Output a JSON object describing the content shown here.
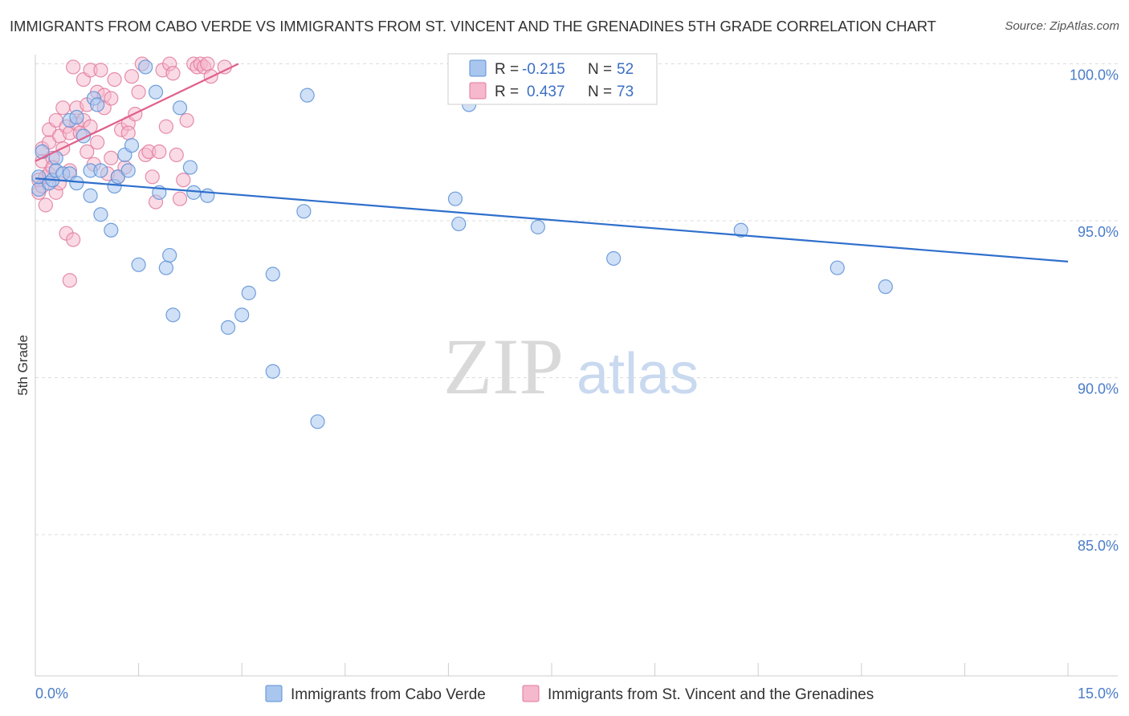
{
  "title": "IMMIGRANTS FROM CABO VERDE VS IMMIGRANTS FROM ST. VINCENT AND THE GRENADINES 5TH GRADE CORRELATION CHART",
  "source": "Source: ZipAtlas.com",
  "watermark": {
    "zip": "ZIP",
    "atlas": "atlas"
  },
  "colors": {
    "blue_fill": "#a9c6ee",
    "blue_stroke": "#5b8fd6",
    "blue_line": "#2f6fcc",
    "pink_fill": "#f6b8cc",
    "pink_stroke": "#e07a9c",
    "pink_line": "#e0608c",
    "grid": "#dddddd",
    "axis_text": "#4a7cc9"
  },
  "legend": {
    "r_label": "R =",
    "n_label": "N =",
    "series": [
      {
        "r": "-0.215",
        "n": "52"
      },
      {
        "r": "0.437",
        "n": "73"
      }
    ]
  },
  "chart_data": {
    "type": "scatter",
    "title": "IMMIGRANTS FROM CABO VERDE VS IMMIGRANTS FROM ST. VINCENT AND THE GRENADINES 5TH GRADE CORRELATION CHART",
    "xlabel": "",
    "ylabel": "5th Grade",
    "xlim": [
      0,
      15
    ],
    "ylim": [
      80.5,
      100.5
    ],
    "x_tick_labels": [
      "0.0%",
      "15.0%"
    ],
    "y_ticks": [
      85,
      90,
      95,
      100
    ],
    "y_tick_labels": [
      "85.0%",
      "90.0%",
      "95.0%",
      "100.0%"
    ],
    "grid": true,
    "legend_position": "top-center",
    "series": [
      {
        "name": "Immigrants from Cabo Verde",
        "trend": {
          "x": [
            0.0,
            15.0
          ],
          "y": [
            96.35,
            93.7
          ]
        },
        "points": [
          {
            "x": 0.05,
            "y": 96.0
          },
          {
            "x": 0.05,
            "y": 96.4
          },
          {
            "x": 0.1,
            "y": 97.2
          },
          {
            "x": 0.2,
            "y": 96.2
          },
          {
            "x": 0.25,
            "y": 96.3
          },
          {
            "x": 0.3,
            "y": 97.0
          },
          {
            "x": 0.3,
            "y": 96.6
          },
          {
            "x": 0.4,
            "y": 96.5
          },
          {
            "x": 0.5,
            "y": 96.5
          },
          {
            "x": 0.5,
            "y": 98.2
          },
          {
            "x": 0.6,
            "y": 98.3
          },
          {
            "x": 0.6,
            "y": 96.2
          },
          {
            "x": 0.7,
            "y": 97.7
          },
          {
            "x": 0.8,
            "y": 95.8
          },
          {
            "x": 0.8,
            "y": 96.6
          },
          {
            "x": 0.85,
            "y": 98.9
          },
          {
            "x": 0.9,
            "y": 98.7
          },
          {
            "x": 0.95,
            "y": 96.6
          },
          {
            "x": 0.95,
            "y": 95.2
          },
          {
            "x": 1.1,
            "y": 94.7
          },
          {
            "x": 1.15,
            "y": 96.1
          },
          {
            "x": 1.2,
            "y": 96.4
          },
          {
            "x": 1.3,
            "y": 97.1
          },
          {
            "x": 1.35,
            "y": 96.6
          },
          {
            "x": 1.4,
            "y": 97.4
          },
          {
            "x": 1.5,
            "y": 93.6
          },
          {
            "x": 1.6,
            "y": 99.9
          },
          {
            "x": 1.75,
            "y": 99.1
          },
          {
            "x": 1.8,
            "y": 95.9
          },
          {
            "x": 1.9,
            "y": 93.5
          },
          {
            "x": 1.95,
            "y": 93.9
          },
          {
            "x": 2.0,
            "y": 92.0
          },
          {
            "x": 2.1,
            "y": 98.6
          },
          {
            "x": 2.25,
            "y": 96.7
          },
          {
            "x": 2.3,
            "y": 95.9
          },
          {
            "x": 2.5,
            "y": 95.8
          },
          {
            "x": 2.8,
            "y": 91.6
          },
          {
            "x": 3.0,
            "y": 92.0
          },
          {
            "x": 3.1,
            "y": 92.7
          },
          {
            "x": 3.45,
            "y": 93.3
          },
          {
            "x": 3.45,
            "y": 90.2
          },
          {
            "x": 3.9,
            "y": 95.3
          },
          {
            "x": 3.95,
            "y": 99.0
          },
          {
            "x": 4.1,
            "y": 88.6
          },
          {
            "x": 6.1,
            "y": 95.7
          },
          {
            "x": 6.15,
            "y": 94.9
          },
          {
            "x": 6.3,
            "y": 98.7
          },
          {
            "x": 7.3,
            "y": 94.8
          },
          {
            "x": 8.4,
            "y": 93.8
          },
          {
            "x": 10.25,
            "y": 94.7
          },
          {
            "x": 11.65,
            "y": 93.5
          },
          {
            "x": 12.35,
            "y": 92.9
          }
        ]
      },
      {
        "name": "Immigrants from St. Vincent and the Grenadines",
        "trend": {
          "x": [
            0.0,
            2.95
          ],
          "y": [
            96.9,
            100.0
          ]
        },
        "points": [
          {
            "x": 0.05,
            "y": 95.9
          },
          {
            "x": 0.05,
            "y": 96.3
          },
          {
            "x": 0.1,
            "y": 96.9
          },
          {
            "x": 0.1,
            "y": 97.3
          },
          {
            "x": 0.1,
            "y": 96.1
          },
          {
            "x": 0.15,
            "y": 95.5
          },
          {
            "x": 0.15,
            "y": 96.4
          },
          {
            "x": 0.2,
            "y": 97.5
          },
          {
            "x": 0.2,
            "y": 97.9
          },
          {
            "x": 0.2,
            "y": 96.5
          },
          {
            "x": 0.25,
            "y": 97.0
          },
          {
            "x": 0.25,
            "y": 96.7
          },
          {
            "x": 0.3,
            "y": 95.9
          },
          {
            "x": 0.3,
            "y": 98.2
          },
          {
            "x": 0.35,
            "y": 97.7
          },
          {
            "x": 0.35,
            "y": 96.2
          },
          {
            "x": 0.4,
            "y": 97.3
          },
          {
            "x": 0.4,
            "y": 98.6
          },
          {
            "x": 0.45,
            "y": 98.0
          },
          {
            "x": 0.45,
            "y": 94.6
          },
          {
            "x": 0.5,
            "y": 97.8
          },
          {
            "x": 0.5,
            "y": 96.6
          },
          {
            "x": 0.5,
            "y": 93.1
          },
          {
            "x": 0.55,
            "y": 99.9
          },
          {
            "x": 0.55,
            "y": 94.4
          },
          {
            "x": 0.6,
            "y": 98.1
          },
          {
            "x": 0.6,
            "y": 98.6
          },
          {
            "x": 0.65,
            "y": 97.8
          },
          {
            "x": 0.7,
            "y": 98.2
          },
          {
            "x": 0.7,
            "y": 99.5
          },
          {
            "x": 0.75,
            "y": 97.2
          },
          {
            "x": 0.75,
            "y": 98.7
          },
          {
            "x": 0.8,
            "y": 99.8
          },
          {
            "x": 0.8,
            "y": 98.0
          },
          {
            "x": 0.85,
            "y": 96.8
          },
          {
            "x": 0.9,
            "y": 97.5
          },
          {
            "x": 0.9,
            "y": 99.1
          },
          {
            "x": 0.95,
            "y": 99.8
          },
          {
            "x": 1.0,
            "y": 99.0
          },
          {
            "x": 1.0,
            "y": 98.6
          },
          {
            "x": 1.05,
            "y": 96.5
          },
          {
            "x": 1.1,
            "y": 97.0
          },
          {
            "x": 1.1,
            "y": 98.9
          },
          {
            "x": 1.15,
            "y": 99.5
          },
          {
            "x": 1.2,
            "y": 96.4
          },
          {
            "x": 1.25,
            "y": 97.9
          },
          {
            "x": 1.3,
            "y": 96.7
          },
          {
            "x": 1.35,
            "y": 98.1
          },
          {
            "x": 1.35,
            "y": 97.8
          },
          {
            "x": 1.4,
            "y": 99.6
          },
          {
            "x": 1.45,
            "y": 98.4
          },
          {
            "x": 1.5,
            "y": 99.1
          },
          {
            "x": 1.55,
            "y": 100.0
          },
          {
            "x": 1.6,
            "y": 97.1
          },
          {
            "x": 1.65,
            "y": 97.2
          },
          {
            "x": 1.7,
            "y": 96.4
          },
          {
            "x": 1.75,
            "y": 95.6
          },
          {
            "x": 1.8,
            "y": 97.2
          },
          {
            "x": 1.85,
            "y": 99.8
          },
          {
            "x": 1.9,
            "y": 98.0
          },
          {
            "x": 1.95,
            "y": 100.0
          },
          {
            "x": 2.0,
            "y": 99.7
          },
          {
            "x": 2.05,
            "y": 97.1
          },
          {
            "x": 2.1,
            "y": 95.7
          },
          {
            "x": 2.15,
            "y": 96.3
          },
          {
            "x": 2.2,
            "y": 98.2
          },
          {
            "x": 2.3,
            "y": 100.0
          },
          {
            "x": 2.35,
            "y": 99.9
          },
          {
            "x": 2.4,
            "y": 100.0
          },
          {
            "x": 2.45,
            "y": 99.9
          },
          {
            "x": 2.5,
            "y": 100.0
          },
          {
            "x": 2.55,
            "y": 99.6
          },
          {
            "x": 2.75,
            "y": 99.9
          }
        ]
      }
    ]
  }
}
